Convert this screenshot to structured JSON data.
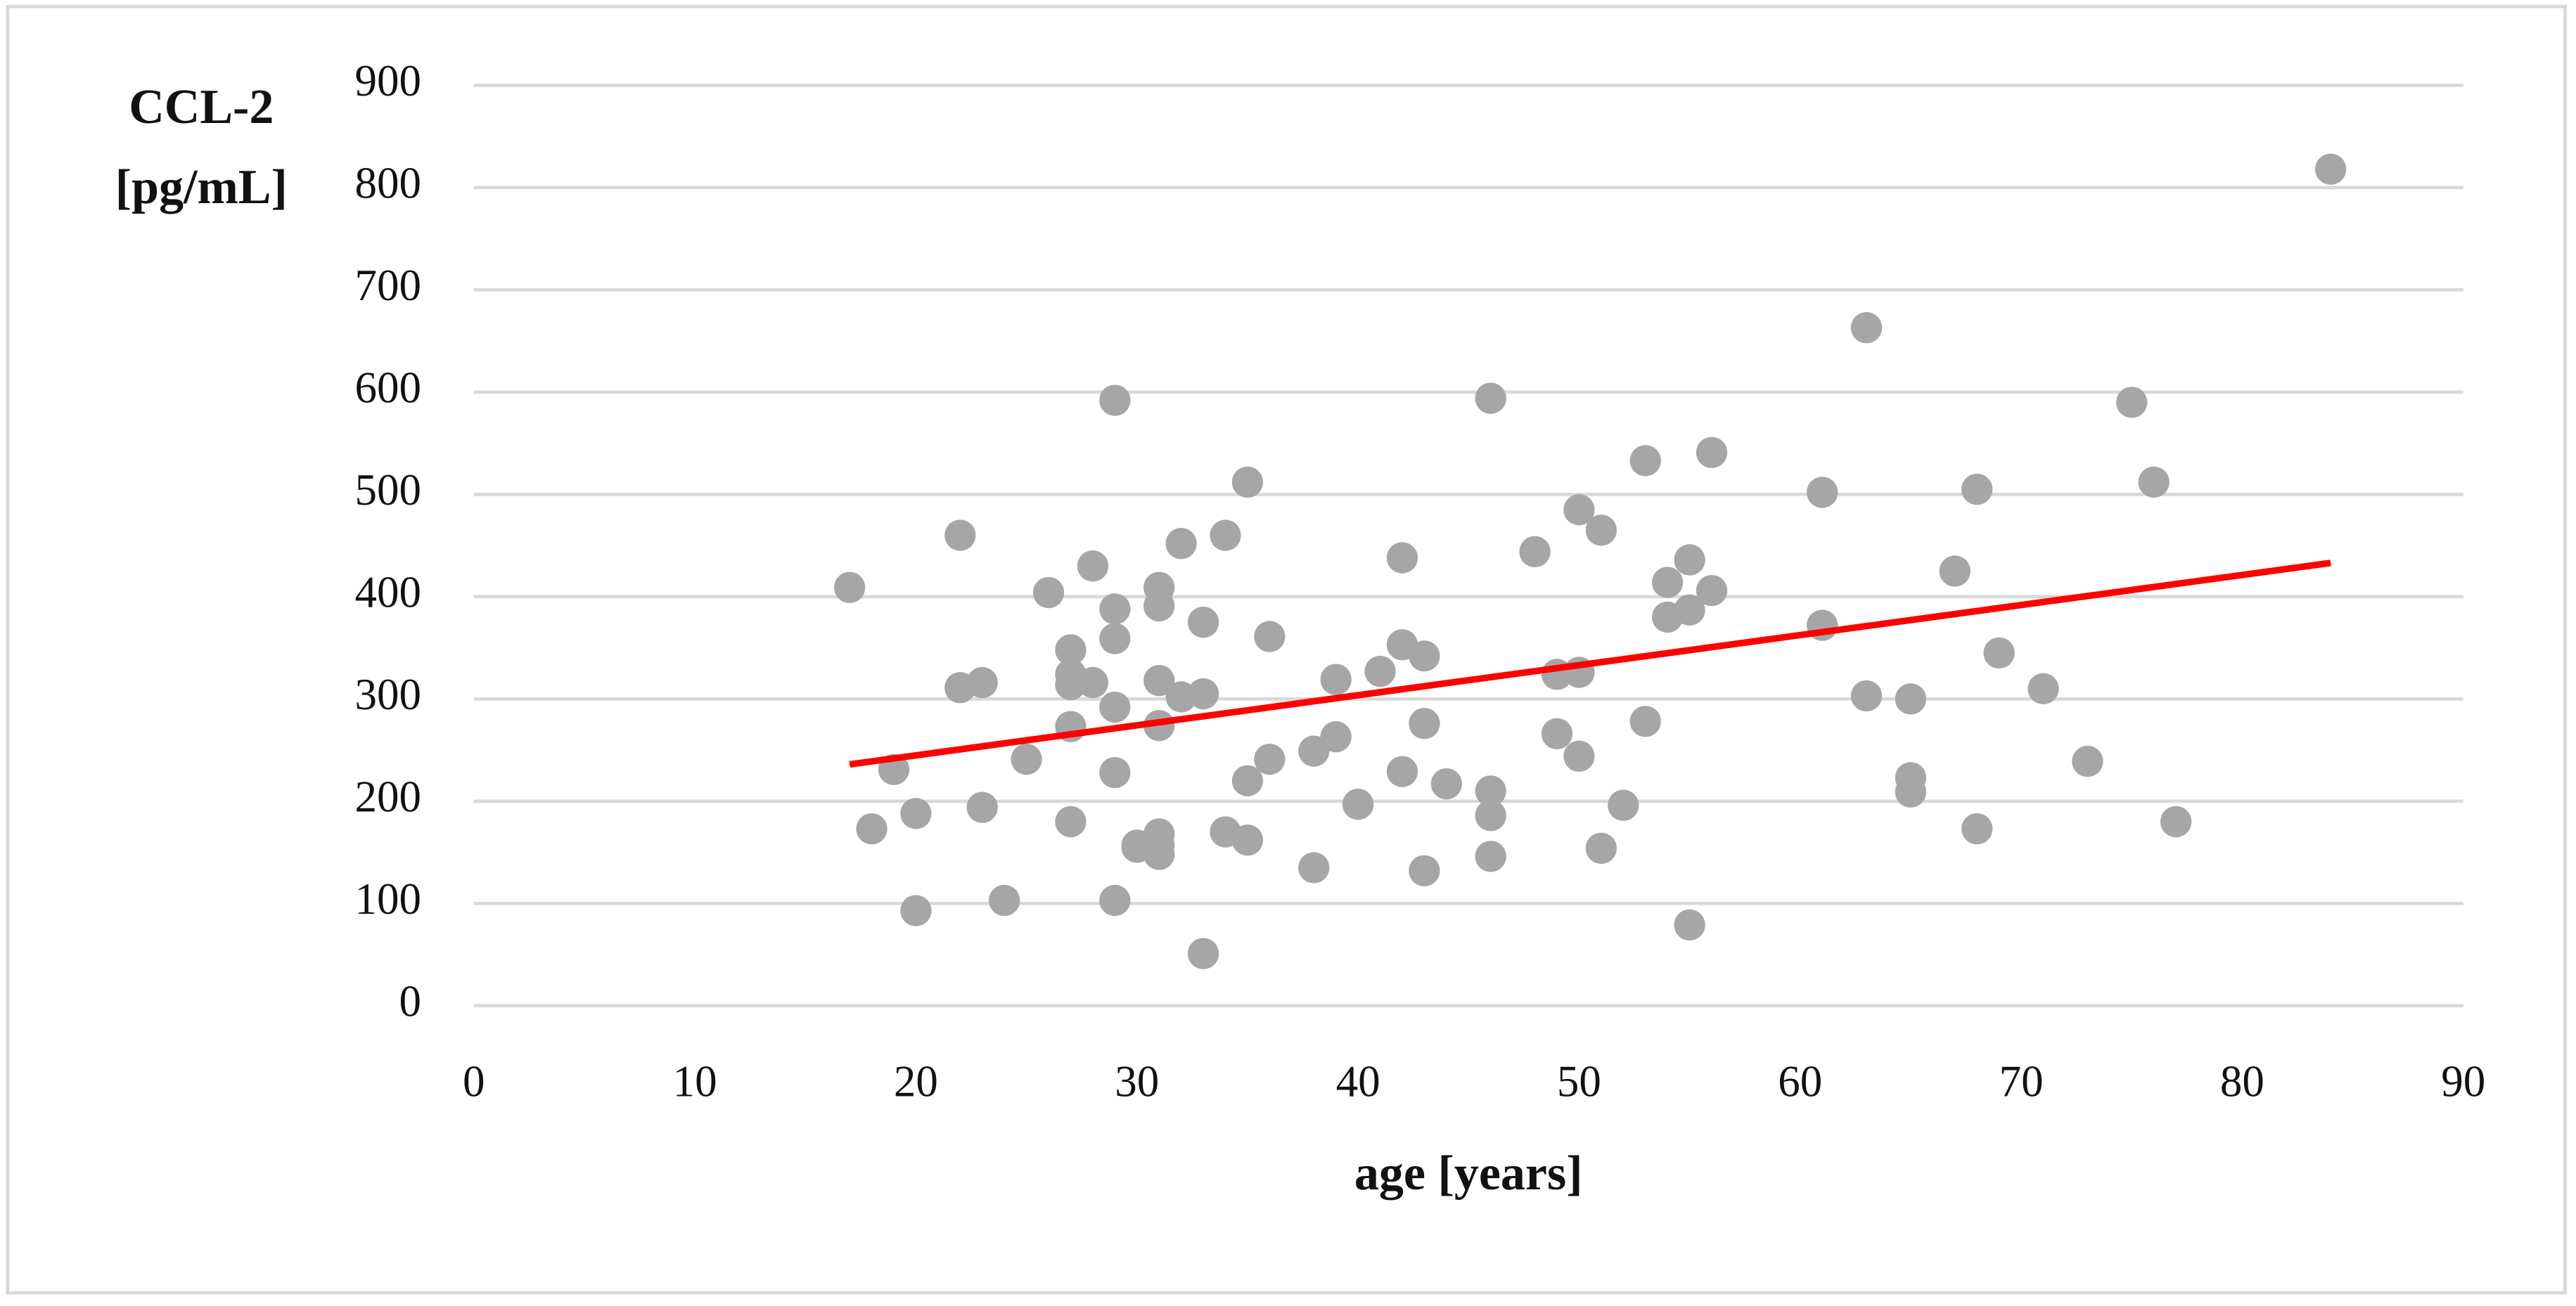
{
  "chart_data": {
    "type": "scatter",
    "y_label": [
      "CCL-2",
      "[pg/mL]"
    ],
    "x_label": "age [years]",
    "x": [
      17,
      18,
      19,
      20,
      20,
      22,
      22,
      23,
      23,
      24,
      25,
      26,
      27,
      27,
      27,
      27,
      27,
      28,
      28,
      29,
      29,
      29,
      29,
      29,
      29,
      30,
      30,
      31,
      31,
      31,
      31,
      31,
      31,
      31,
      32,
      32,
      33,
      33,
      33,
      34,
      34,
      35,
      35,
      35,
      36,
      36,
      38,
      38,
      39,
      39,
      40,
      41,
      42,
      42,
      42,
      43,
      43,
      43,
      44,
      46,
      46,
      46,
      46,
      48,
      49,
      49,
      50,
      50,
      50,
      51,
      51,
      52,
      53,
      53,
      54,
      54,
      55,
      55,
      55,
      56,
      56,
      61,
      61,
      63,
      63,
      65,
      65,
      65,
      67,
      68,
      68,
      69,
      71,
      73,
      75,
      76,
      77,
      84
    ],
    "values": [
      409,
      173,
      231,
      188,
      93,
      460,
      311,
      316,
      194,
      103,
      241,
      404,
      348,
      324,
      314,
      273,
      180,
      430,
      316,
      592,
      388,
      359,
      292,
      228,
      103,
      157,
      155,
      409,
      391,
      318,
      274,
      168,
      157,
      148,
      452,
      302,
      375,
      305,
      51,
      460,
      170,
      512,
      220,
      162,
      361,
      241,
      249,
      135,
      319,
      263,
      197,
      327,
      438,
      353,
      229,
      342,
      276,
      132,
      217,
      594,
      210,
      186,
      146,
      444,
      324,
      266,
      485,
      326,
      244,
      465,
      154,
      196,
      533,
      278,
      414,
      380,
      436,
      387,
      79,
      541,
      406,
      502,
      372,
      663,
      303,
      300,
      223,
      209,
      425,
      505,
      173,
      345,
      310,
      239,
      590,
      512,
      180,
      818
    ],
    "color": "#a6a6a6",
    "trend": {
      "x": [
        17,
        84
      ],
      "values": [
        236,
        433
      ],
      "color": "#ff0000"
    },
    "xlim": [
      0,
      90
    ],
    "xticks": [
      0,
      10,
      20,
      30,
      40,
      50,
      60,
      70,
      80,
      90
    ],
    "ylim": [
      0,
      900
    ],
    "yticks": [
      0,
      100,
      200,
      300,
      400,
      500,
      600,
      700,
      800,
      900
    ],
    "grid": true
  }
}
